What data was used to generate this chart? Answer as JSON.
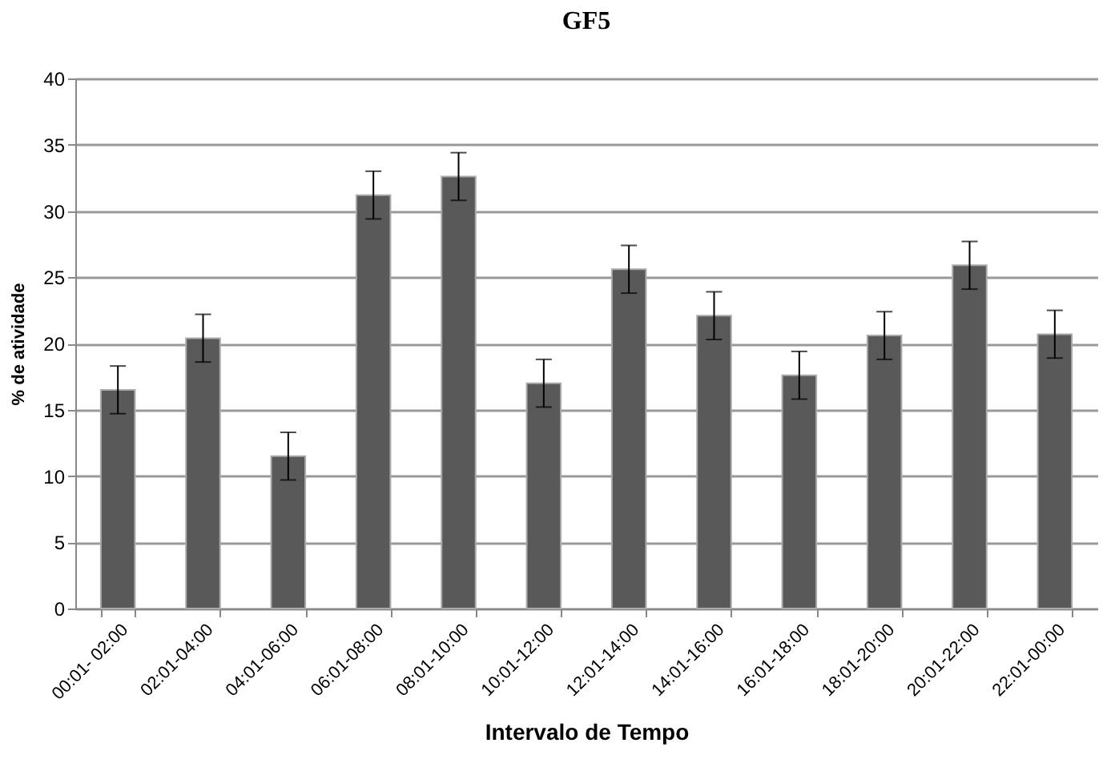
{
  "chart_data": {
    "type": "bar",
    "title": "GF5",
    "xlabel": "Intervalo de Tempo",
    "ylabel": "% de atividade",
    "categories": [
      "00:01- 02:00",
      "02:01-04:00",
      "04:01-06:00",
      "06:01-08:00",
      "08:01-10:00",
      "10:01-12:00",
      "12:01-14:00",
      "14:01-16:00",
      "16:01-18:00",
      "18:01-20:00",
      "20:01-22:00",
      "22:01-00:00"
    ],
    "values": [
      16.5,
      20.4,
      11.5,
      31.2,
      32.6,
      17.0,
      25.6,
      22.1,
      17.6,
      20.6,
      25.9,
      20.7
    ],
    "errors": [
      1.8,
      1.8,
      1.8,
      1.8,
      1.8,
      1.8,
      1.8,
      1.8,
      1.8,
      1.8,
      1.8,
      1.8
    ],
    "color": "#595959",
    "ylim": [
      0,
      40
    ],
    "yticks": [
      0,
      5,
      10,
      15,
      20,
      25,
      30,
      35,
      40
    ],
    "grid": "y"
  }
}
